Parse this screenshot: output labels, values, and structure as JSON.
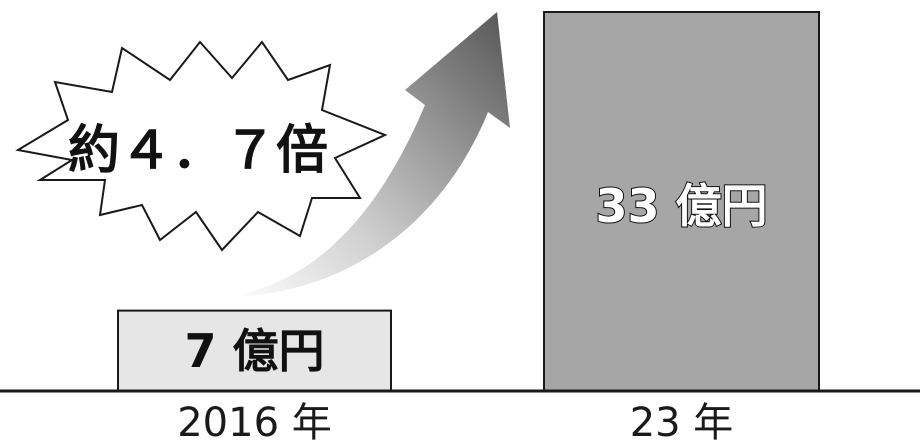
{
  "chart_data": {
    "type": "bar",
    "categories": [
      "2016 年",
      "23 年"
    ],
    "values": [
      7,
      33
    ],
    "value_labels": [
      "7 億円",
      "33 億円"
    ],
    "units": "億円",
    "ylim": [
      0,
      33
    ],
    "grid": false,
    "annotation": "約４．７倍",
    "colors": {
      "bar_2016": "#e6e6e6",
      "bar_23": "#a6a6a6",
      "axis": "#1a1a1a",
      "arrow_dark": "#555555",
      "arrow_light": "#ffffff"
    }
  }
}
